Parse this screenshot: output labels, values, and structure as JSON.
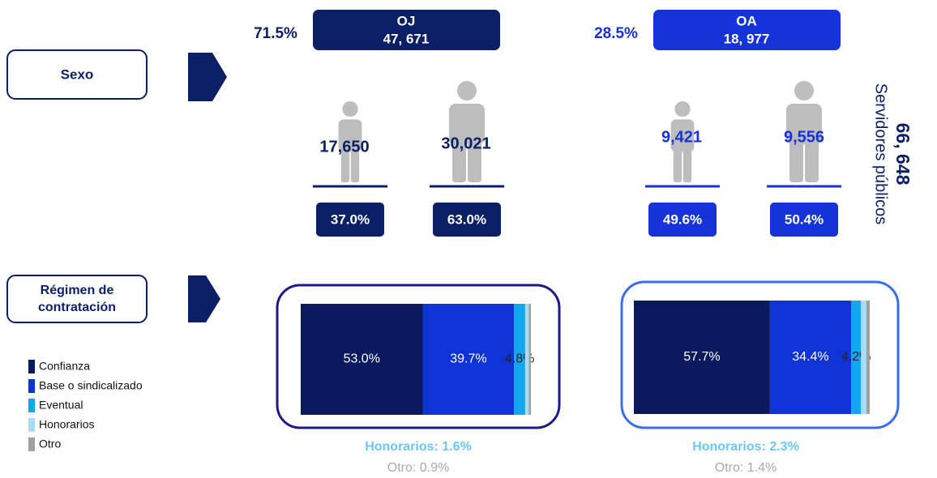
{
  "sections": {
    "sexo": "Sexo",
    "regimen": [
      "Régimen de",
      "contratación"
    ]
  },
  "total": {
    "value": "66, 648",
    "label": "Servidores públicos"
  },
  "legend": {
    "categories": [
      "Confianza",
      "Base o sindicalizado",
      "Eventual",
      "Honorarios",
      "Otro"
    ],
    "colors": [
      "#0a1a5c",
      "#1033d6",
      "#12a8f0",
      "#a6dcf7",
      "#a0a0a0"
    ]
  },
  "groups": [
    {
      "name": "OJ",
      "share": "71.5%",
      "count": "47, 671",
      "color": "#0b1f66",
      "outline": "#1a1a8a",
      "women": {
        "count": "17,650",
        "pct": "37.0%"
      },
      "men": {
        "count": "30,021",
        "pct": "63.0%"
      },
      "regime": {
        "values": [
          53.0,
          39.7,
          4.8,
          1.6,
          0.9
        ],
        "value_labels": [
          "53.0%",
          "39.7%",
          "4.8%",
          null,
          null
        ]
      },
      "notes": [
        "Honorarios: 1.6%",
        "Otro: 0.9%"
      ]
    },
    {
      "name": "OA",
      "share": "28.5%",
      "count": "18, 977",
      "color": "#1533d6",
      "outline": "#3a6ef0",
      "women": {
        "count": "9,421",
        "pct": "49.6%"
      },
      "men": {
        "count": "9,556",
        "pct": "50.4%"
      },
      "regime": {
        "values": [
          57.7,
          34.4,
          4.2,
          2.3,
          1.4
        ],
        "value_labels": [
          "57.7%",
          "34.4%",
          "4.2%",
          null,
          null
        ]
      },
      "notes": [
        "Honorarios: 2.3%",
        "Otro: 1.4%"
      ]
    }
  ]
}
